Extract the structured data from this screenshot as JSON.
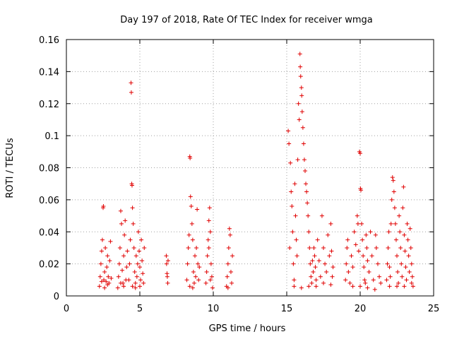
{
  "chart_data": {
    "type": "scatter",
    "title": "Day 197 of 2018, Rate Of TEC Index for receiver wmga",
    "xlabel": "GPS time / hours",
    "ylabel": "ROTI / TECUs",
    "xlim": [
      0,
      25
    ],
    "ylim": [
      0,
      0.16
    ],
    "xticks": [
      0,
      5,
      10,
      15,
      20,
      25
    ],
    "xtick_labels": [
      "0",
      "5",
      "10",
      "15",
      "20",
      "25"
    ],
    "yticks": [
      0,
      0.02,
      0.04,
      0.06,
      0.08,
      0.1,
      0.12,
      0.14,
      0.16
    ],
    "ytick_labels": [
      "0",
      "0.02",
      "0.04",
      "0.06",
      "0.08",
      "0.1",
      "0.12",
      "0.14",
      "0.16"
    ],
    "grid": true,
    "marker": "plus",
    "color": "#e00000",
    "points": [
      [
        2.25,
        0.006
      ],
      [
        2.3,
        0.012
      ],
      [
        2.35,
        0.02
      ],
      [
        2.4,
        0.028
      ],
      [
        2.45,
        0.035
      ],
      [
        2.5,
        0.055
      ],
      [
        2.52,
        0.056
      ],
      [
        2.55,
        0.01
      ],
      [
        2.6,
        0.015
      ],
      [
        2.65,
        0.03
      ],
      [
        2.7,
        0.009
      ],
      [
        2.75,
        0.018
      ],
      [
        2.8,
        0.025
      ],
      [
        2.85,
        0.012
      ],
      [
        2.9,
        0.008
      ],
      [
        2.95,
        0.022
      ],
      [
        3.0,
        0.034
      ],
      [
        3.05,
        0.011
      ],
      [
        2.4,
        0.009
      ],
      [
        2.6,
        0.005
      ],
      [
        2.8,
        0.007
      ],
      [
        3.5,
        0.005
      ],
      [
        3.55,
        0.012
      ],
      [
        3.6,
        0.02
      ],
      [
        3.65,
        0.03
      ],
      [
        3.7,
        0.053
      ],
      [
        3.75,
        0.045
      ],
      [
        3.8,
        0.016
      ],
      [
        3.85,
        0.008
      ],
      [
        3.9,
        0.025
      ],
      [
        3.95,
        0.038
      ],
      [
        4.0,
        0.047
      ],
      [
        4.05,
        0.01
      ],
      [
        4.1,
        0.018
      ],
      [
        4.15,
        0.028
      ],
      [
        3.7,
        0.008
      ],
      [
        3.9,
        0.006
      ],
      [
        4.25,
        0.01
      ],
      [
        4.3,
        0.02
      ],
      [
        4.35,
        0.035
      ],
      [
        4.4,
        0.133
      ],
      [
        4.42,
        0.127
      ],
      [
        4.45,
        0.07
      ],
      [
        4.47,
        0.069
      ],
      [
        4.5,
        0.055
      ],
      [
        4.55,
        0.045
      ],
      [
        4.6,
        0.03
      ],
      [
        4.65,
        0.015
      ],
      [
        4.7,
        0.008
      ],
      [
        4.75,
        0.025
      ],
      [
        4.8,
        0.012
      ],
      [
        4.85,
        0.02
      ],
      [
        4.9,
        0.04
      ],
      [
        4.95,
        0.028
      ],
      [
        5.0,
        0.018
      ],
      [
        5.05,
        0.01
      ],
      [
        5.1,
        0.035
      ],
      [
        5.15,
        0.022
      ],
      [
        5.2,
        0.014
      ],
      [
        5.25,
        0.008
      ],
      [
        5.3,
        0.03
      ],
      [
        4.5,
        0.006
      ],
      [
        4.7,
        0.005
      ],
      [
        5.0,
        0.006
      ],
      [
        6.8,
        0.025
      ],
      [
        6.82,
        0.02
      ],
      [
        6.85,
        0.014
      ],
      [
        6.87,
        0.012
      ],
      [
        6.9,
        0.008
      ],
      [
        6.92,
        0.022
      ],
      [
        8.2,
        0.01
      ],
      [
        8.25,
        0.02
      ],
      [
        8.3,
        0.03
      ],
      [
        8.35,
        0.038
      ],
      [
        8.4,
        0.087
      ],
      [
        8.42,
        0.086
      ],
      [
        8.45,
        0.062
      ],
      [
        8.5,
        0.056
      ],
      [
        8.55,
        0.045
      ],
      [
        8.6,
        0.035
      ],
      [
        8.65,
        0.015
      ],
      [
        8.7,
        0.008
      ],
      [
        8.75,
        0.025
      ],
      [
        8.8,
        0.012
      ],
      [
        8.85,
        0.03
      ],
      [
        8.9,
        0.054
      ],
      [
        8.95,
        0.02
      ],
      [
        9.0,
        0.01
      ],
      [
        9.05,
        0.018
      ],
      [
        8.4,
        0.006
      ],
      [
        8.6,
        0.005
      ],
      [
        9.5,
        0.008
      ],
      [
        9.55,
        0.015
      ],
      [
        9.6,
        0.025
      ],
      [
        9.65,
        0.035
      ],
      [
        9.7,
        0.047
      ],
      [
        9.75,
        0.055
      ],
      [
        9.8,
        0.04
      ],
      [
        9.85,
        0.02
      ],
      [
        9.9,
        0.012
      ],
      [
        9.95,
        0.005
      ],
      [
        9.7,
        0.03
      ],
      [
        9.8,
        0.01
      ],
      [
        10.9,
        0.006
      ],
      [
        10.95,
        0.012
      ],
      [
        11.0,
        0.02
      ],
      [
        11.05,
        0.03
      ],
      [
        11.1,
        0.042
      ],
      [
        11.15,
        0.038
      ],
      [
        11.2,
        0.015
      ],
      [
        11.25,
        0.008
      ],
      [
        11.3,
        0.025
      ],
      [
        11.0,
        0.005
      ],
      [
        15.1,
        0.103
      ],
      [
        15.15,
        0.095
      ],
      [
        15.2,
        0.03
      ],
      [
        15.25,
        0.083
      ],
      [
        15.3,
        0.065
      ],
      [
        15.35,
        0.056
      ],
      [
        15.4,
        0.04
      ],
      [
        15.45,
        0.02
      ],
      [
        15.5,
        0.01
      ],
      [
        15.55,
        0.07
      ],
      [
        15.6,
        0.05
      ],
      [
        15.65,
        0.035
      ],
      [
        15.7,
        0.025
      ],
      [
        15.75,
        0.085
      ],
      [
        15.8,
        0.12
      ],
      [
        15.85,
        0.11
      ],
      [
        15.9,
        0.151
      ],
      [
        15.92,
        0.143
      ],
      [
        15.95,
        0.137
      ],
      [
        16.0,
        0.13
      ],
      [
        16.02,
        0.125
      ],
      [
        16.05,
        0.115
      ],
      [
        16.1,
        0.105
      ],
      [
        16.15,
        0.095
      ],
      [
        16.2,
        0.085
      ],
      [
        16.25,
        0.078
      ],
      [
        16.3,
        0.07
      ],
      [
        16.35,
        0.065
      ],
      [
        16.4,
        0.058
      ],
      [
        16.45,
        0.05
      ],
      [
        16.5,
        0.04
      ],
      [
        16.55,
        0.03
      ],
      [
        16.6,
        0.02
      ],
      [
        16.65,
        0.012
      ],
      [
        16.7,
        0.008
      ],
      [
        16.75,
        0.022
      ],
      [
        16.8,
        0.015
      ],
      [
        16.85,
        0.03
      ],
      [
        16.9,
        0.025
      ],
      [
        16.95,
        0.018
      ],
      [
        17.0,
        0.01
      ],
      [
        17.1,
        0.035
      ],
      [
        17.2,
        0.022
      ],
      [
        17.3,
        0.012
      ],
      [
        17.4,
        0.05
      ],
      [
        17.5,
        0.03
      ],
      [
        17.6,
        0.02
      ],
      [
        17.7,
        0.015
      ],
      [
        17.8,
        0.038
      ],
      [
        17.9,
        0.025
      ],
      [
        18.0,
        0.045
      ],
      [
        18.05,
        0.028
      ],
      [
        18.1,
        0.012
      ],
      [
        18.15,
        0.018
      ],
      [
        15.5,
        0.006
      ],
      [
        16.0,
        0.005
      ],
      [
        16.5,
        0.006
      ],
      [
        17.0,
        0.006
      ],
      [
        17.5,
        0.008
      ],
      [
        18.0,
        0.007
      ],
      [
        19.0,
        0.01
      ],
      [
        19.05,
        0.02
      ],
      [
        19.1,
        0.03
      ],
      [
        19.15,
        0.035
      ],
      [
        19.2,
        0.015
      ],
      [
        19.3,
        0.008
      ],
      [
        19.4,
        0.025
      ],
      [
        19.5,
        0.018
      ],
      [
        19.6,
        0.04
      ],
      [
        19.7,
        0.032
      ],
      [
        19.8,
        0.05
      ],
      [
        19.85,
        0.045
      ],
      [
        19.9,
        0.028
      ],
      [
        19.95,
        0.09
      ],
      [
        20.0,
        0.089
      ],
      [
        20.02,
        0.067
      ],
      [
        20.05,
        0.066
      ],
      [
        20.1,
        0.045
      ],
      [
        20.15,
        0.035
      ],
      [
        20.2,
        0.025
      ],
      [
        20.25,
        0.018
      ],
      [
        20.3,
        0.01
      ],
      [
        20.35,
        0.008
      ],
      [
        20.4,
        0.038
      ],
      [
        20.45,
        0.03
      ],
      [
        20.5,
        0.022
      ],
      [
        20.6,
        0.015
      ],
      [
        20.7,
        0.04
      ],
      [
        20.8,
        0.025
      ],
      [
        20.9,
        0.01
      ],
      [
        21.0,
        0.004
      ],
      [
        21.05,
        0.038
      ],
      [
        21.1,
        0.03
      ],
      [
        21.2,
        0.02
      ],
      [
        21.3,
        0.012
      ],
      [
        21.4,
        0.008
      ],
      [
        19.5,
        0.006
      ],
      [
        20.0,
        0.006
      ],
      [
        20.5,
        0.005
      ],
      [
        21.8,
        0.01
      ],
      [
        21.85,
        0.02
      ],
      [
        21.9,
        0.03
      ],
      [
        21.95,
        0.04
      ],
      [
        22.0,
        0.018
      ],
      [
        22.05,
        0.012
      ],
      [
        22.1,
        0.045
      ],
      [
        22.15,
        0.06
      ],
      [
        22.2,
        0.074
      ],
      [
        22.25,
        0.072
      ],
      [
        22.3,
        0.065
      ],
      [
        22.35,
        0.055
      ],
      [
        22.4,
        0.045
      ],
      [
        22.45,
        0.035
      ],
      [
        22.5,
        0.025
      ],
      [
        22.55,
        0.015
      ],
      [
        22.6,
        0.008
      ],
      [
        22.65,
        0.05
      ],
      [
        22.7,
        0.04
      ],
      [
        22.75,
        0.03
      ],
      [
        22.8,
        0.02
      ],
      [
        22.85,
        0.012
      ],
      [
        22.9,
        0.055
      ],
      [
        22.95,
        0.068
      ],
      [
        23.0,
        0.038
      ],
      [
        23.05,
        0.028
      ],
      [
        23.1,
        0.018
      ],
      [
        23.15,
        0.01
      ],
      [
        23.2,
        0.045
      ],
      [
        23.25,
        0.035
      ],
      [
        23.3,
        0.025
      ],
      [
        23.35,
        0.015
      ],
      [
        23.4,
        0.042
      ],
      [
        23.45,
        0.03
      ],
      [
        23.5,
        0.02
      ],
      [
        23.55,
        0.012
      ],
      [
        23.6,
        0.006
      ],
      [
        22.0,
        0.006
      ],
      [
        22.5,
        0.006
      ],
      [
        23.0,
        0.006
      ],
      [
        23.5,
        0.008
      ]
    ]
  }
}
